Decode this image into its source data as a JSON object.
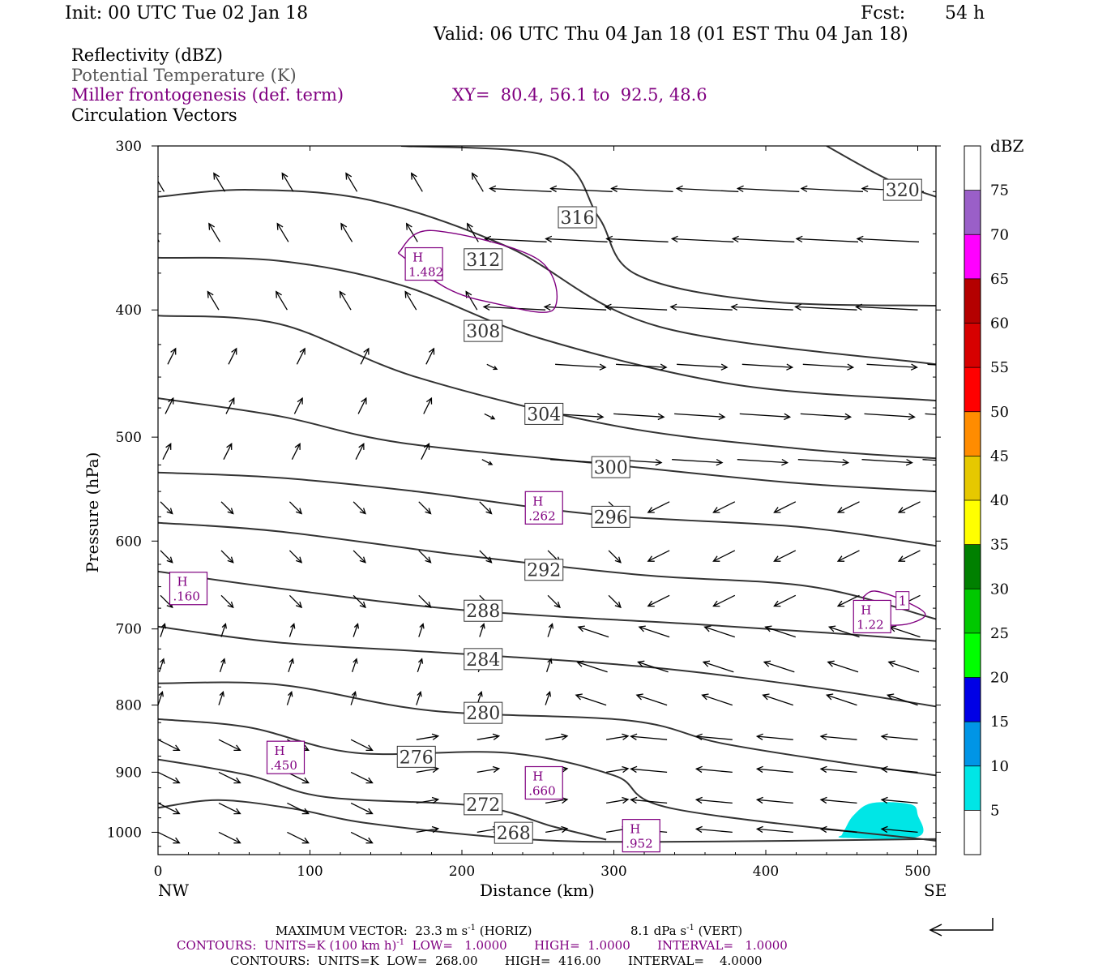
{
  "header": {
    "init": "Init: 00 UTC Tue 02 Jan 18",
    "fcst_label": "Fcst:",
    "fcst_value": "54 h",
    "valid": "Valid: 06 UTC Thu 04 Jan 18 (01 EST Thu 04 Jan 18)"
  },
  "fields": {
    "reflectivity": "Reflectivity (dBZ)",
    "theta": "Potential Temperature (K)",
    "frontogenesis": "Miller frontogenesis (def. term)",
    "xy": "XY=  80.4, 56.1 to  92.5, 48.6",
    "vectors": "Circulation Vectors"
  },
  "colors": {
    "theta": "#333333",
    "frontogenesis": "#800080",
    "vectors": "#000000",
    "echo": "#00e6e6"
  },
  "chart_data": {
    "type": "cross-section",
    "xlabel": "Distance (km)",
    "ylabel": "Pressure (hPa)",
    "x_end_labels": [
      "NW",
      "SE"
    ],
    "xlim": [
      0,
      512
    ],
    "ylim": [
      1040,
      300
    ],
    "xticks": [
      0,
      100,
      200,
      300,
      400,
      500
    ],
    "yticks": [
      300,
      400,
      500,
      600,
      700,
      800,
      900,
      1000
    ],
    "theta_contours": [
      {
        "label": "320",
        "lx": 490,
        "lp": 324,
        "points": [
          [
            440,
            300
          ],
          [
            480,
            318
          ],
          [
            512,
            328
          ]
        ]
      },
      {
        "label": "316",
        "lx": 276,
        "lp": 340,
        "points": [
          [
            160,
            300
          ],
          [
            260,
            306
          ],
          [
            290,
            340
          ],
          [
            315,
            376
          ],
          [
            400,
            394
          ],
          [
            512,
            397
          ]
        ]
      },
      {
        "label": "312",
        "lx": 214,
        "lp": 366,
        "points": [
          [
            0,
            328
          ],
          [
            60,
            324
          ],
          [
            140,
            330
          ],
          [
            230,
            358
          ],
          [
            330,
            412
          ],
          [
            512,
            440
          ]
        ]
      },
      {
        "label": "308",
        "lx": 214,
        "lp": 415,
        "points": [
          [
            0,
            365
          ],
          [
            80,
            367
          ],
          [
            160,
            383
          ],
          [
            250,
            420
          ],
          [
            380,
            456
          ],
          [
            512,
            469
          ]
        ]
      },
      {
        "label": "304",
        "lx": 254,
        "lp": 480,
        "points": [
          [
            0,
            404
          ],
          [
            80,
            410
          ],
          [
            170,
            450
          ],
          [
            300,
            490
          ],
          [
            420,
            510
          ],
          [
            512,
            519
          ]
        ]
      },
      {
        "label": "300",
        "lx": 298,
        "lp": 527,
        "points": [
          [
            0,
            467
          ],
          [
            80,
            482
          ],
          [
            160,
            505
          ],
          [
            300,
            525
          ],
          [
            420,
            542
          ],
          [
            512,
            550
          ]
        ]
      },
      {
        "label": "296",
        "lx": 298,
        "lp": 575,
        "points": [
          [
            0,
            532
          ],
          [
            80,
            537
          ],
          [
            170,
            550
          ],
          [
            290,
            573
          ],
          [
            420,
            585
          ],
          [
            512,
            605
          ]
        ]
      },
      {
        "label": "292",
        "lx": 254,
        "lp": 631,
        "points": [
          [
            0,
            581
          ],
          [
            80,
            590
          ],
          [
            200,
            615
          ],
          [
            320,
            637
          ],
          [
            430,
            650
          ],
          [
            512,
            688
          ]
        ]
      },
      {
        "label": "288",
        "lx": 214,
        "lp": 678,
        "points": [
          [
            0,
            633
          ],
          [
            80,
            652
          ],
          [
            200,
            677
          ],
          [
            360,
            695
          ],
          [
            450,
            706
          ],
          [
            512,
            715
          ]
        ]
      },
      {
        "label": "284",
        "lx": 214,
        "lp": 738,
        "points": [
          [
            0,
            697
          ],
          [
            80,
            717
          ],
          [
            190,
            730
          ],
          [
            320,
            748
          ],
          [
            430,
            775
          ],
          [
            512,
            802
          ]
        ]
      },
      {
        "label": "280",
        "lx": 214,
        "lp": 811,
        "points": [
          [
            0,
            770
          ],
          [
            80,
            772
          ],
          [
            180,
            808
          ],
          [
            310,
            822
          ],
          [
            370,
            855
          ],
          [
            450,
            885
          ],
          [
            512,
            905
          ]
        ]
      },
      {
        "label": "276",
        "lx": 170,
        "lp": 876,
        "points": [
          [
            0,
            820
          ],
          [
            60,
            832
          ],
          [
            130,
            870
          ],
          [
            230,
            870
          ],
          [
            300,
            905
          ],
          [
            340,
            960
          ],
          [
            512,
            1015
          ]
        ]
      },
      {
        "label": "272",
        "lx": 214,
        "lp": 952,
        "points": [
          [
            0,
            880
          ],
          [
            60,
            905
          ],
          [
            110,
            940
          ],
          [
            210,
            955
          ],
          [
            260,
            990
          ],
          [
            295,
            1013
          ]
        ]
      },
      {
        "label": "268",
        "lx": 234,
        "lp": 1001,
        "points": [
          [
            0,
            958
          ],
          [
            40,
            945
          ],
          [
            90,
            960
          ],
          [
            140,
            985
          ],
          [
            240,
            1012
          ],
          [
            330,
            1017
          ],
          [
            512,
            1012
          ]
        ]
      }
    ],
    "frontogenesis_maxima": [
      {
        "label": "H",
        "value": "1.482",
        "x": 175,
        "p": 369
      },
      {
        "label": "H",
        "value": ".262",
        "x": 254,
        "p": 566
      },
      {
        "label": "H",
        "value": ".160",
        "x": 20,
        "p": 652
      },
      {
        "label": "H",
        "value": "1.22",
        "x": 470,
        "p": 685
      },
      {
        "label": "H",
        "value": ".450",
        "x": 84,
        "p": 877
      },
      {
        "label": "H",
        "value": ".660",
        "x": 254,
        "p": 917
      },
      {
        "label": "H",
        "value": ".952",
        "x": 318,
        "p": 1006
      }
    ],
    "frontogenesis_contour_label": "1",
    "reflectivity_colorbar": {
      "title": "dBZ",
      "levels": [
        5,
        10,
        15,
        20,
        25,
        30,
        35,
        40,
        45,
        50,
        55,
        60,
        65,
        70,
        75
      ],
      "colors": [
        "#00e6e6",
        "#0095e6",
        "#0000e6",
        "#00ff00",
        "#00c800",
        "#008000",
        "#ffff00",
        "#e6c800",
        "#ff8c00",
        "#ff0000",
        "#d70000",
        "#b40000",
        "#ff00ff",
        "#9a5fc8",
        "#ffffff"
      ]
    },
    "reflectivity_area": {
      "dbz": 5,
      "points": [
        [
          450,
          1005
        ],
        [
          452,
          995
        ],
        [
          458,
          970
        ],
        [
          470,
          950
        ],
        [
          495,
          952
        ],
        [
          500,
          970
        ],
        [
          500,
          1008
        ],
        [
          452,
          1010
        ]
      ]
    },
    "vector_field": {
      "x": [
        0,
        40,
        85,
        127,
        170,
        210,
        255,
        295,
        335,
        378,
        418,
        460,
        500
      ],
      "p": [
        325,
        355,
        400,
        440,
        480,
        520,
        560,
        610,
        660,
        710,
        755,
        800,
        850,
        900,
        950,
        1000
      ],
      "u_scale_note": "reference vector"
    }
  },
  "footer": {
    "max_vector": "MAXIMUM VECTOR:  23.3 m s",
    "max_vector_exp": "-1",
    "max_vector_horiz": " (HORIZ)",
    "vert": "8.1 dPa s",
    "vert_exp": "-1",
    "vert_end": " (VERT)",
    "contours1": "CONTOURS:  UNITS=K (100 km h)",
    "contours1_exp": "-1",
    "contours1_end": "  LOW=   1.0000       HIGH=  1.0000       INTERVAL=   1.0000",
    "contours2": "CONTOURS:  UNITS=K  LOW=  268.00       HIGH=  416.00       INTERVAL=    4.0000"
  }
}
